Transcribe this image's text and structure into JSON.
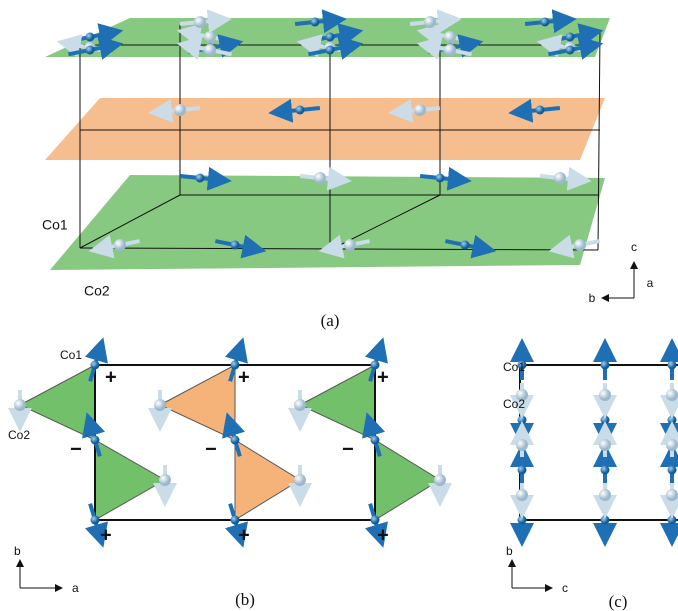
{
  "panels": [
    {
      "label": "(a)",
      "atoms": [
        "Co1",
        "Co2"
      ],
      "axes": [
        "c",
        "b",
        "a"
      ]
    },
    {
      "label": "(b)",
      "atoms": [
        "Co1",
        "Co2"
      ],
      "axes": [
        "b",
        "a"
      ],
      "signs": [
        "+",
        "+",
        "+",
        "−",
        "−",
        "−",
        "+",
        "+",
        "+"
      ]
    },
    {
      "label": "(c)",
      "atoms": [
        "Co1",
        "Co2"
      ],
      "axes": [
        "b",
        "c"
      ]
    }
  ]
}
